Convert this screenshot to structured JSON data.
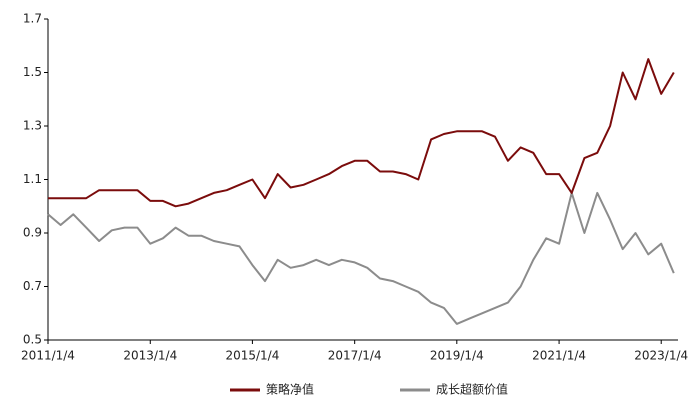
{
  "chart_data": {
    "type": "line",
    "x": [
      "2011/1/4",
      "2011/4/4",
      "2011/7/4",
      "2011/10/4",
      "2012/1/4",
      "2012/4/4",
      "2012/7/4",
      "2012/10/4",
      "2013/1/4",
      "2013/4/4",
      "2013/7/4",
      "2013/10/4",
      "2014/1/4",
      "2014/4/4",
      "2014/7/4",
      "2014/10/4",
      "2015/1/4",
      "2015/4/4",
      "2015/7/4",
      "2015/10/4",
      "2016/1/4",
      "2016/4/4",
      "2016/7/4",
      "2016/10/4",
      "2017/1/4",
      "2017/4/4",
      "2017/7/4",
      "2017/10/4",
      "2018/1/4",
      "2018/4/4",
      "2018/7/4",
      "2018/10/4",
      "2019/1/4",
      "2019/4/4",
      "2019/7/4",
      "2019/10/4",
      "2020/1/4",
      "2020/4/4",
      "2020/7/4",
      "2020/10/4",
      "2021/1/4",
      "2021/4/4",
      "2021/7/4",
      "2021/10/4",
      "2022/1/4",
      "2022/4/4",
      "2022/7/4",
      "2022/10/4",
      "2023/1/4",
      "2023/4/4"
    ],
    "series": [
      {
        "name": "策略净值",
        "color": "#7b0c0c",
        "values": [
          1.03,
          1.03,
          1.03,
          1.03,
          1.06,
          1.06,
          1.06,
          1.06,
          1.02,
          1.02,
          1.0,
          1.01,
          1.03,
          1.05,
          1.06,
          1.08,
          1.1,
          1.03,
          1.12,
          1.07,
          1.08,
          1.1,
          1.12,
          1.15,
          1.17,
          1.17,
          1.13,
          1.13,
          1.12,
          1.1,
          1.25,
          1.27,
          1.28,
          1.28,
          1.28,
          1.26,
          1.17,
          1.22,
          1.2,
          1.12,
          1.12,
          1.05,
          1.18,
          1.2,
          1.3,
          1.5,
          1.4,
          1.55,
          1.42,
          1.5
        ]
      },
      {
        "name": "成长超额价值",
        "color": "#8c8c8c",
        "values": [
          0.97,
          0.93,
          0.97,
          0.92,
          0.87,
          0.91,
          0.92,
          0.92,
          0.86,
          0.88,
          0.92,
          0.89,
          0.89,
          0.87,
          0.86,
          0.85,
          0.78,
          0.72,
          0.8,
          0.77,
          0.78,
          0.8,
          0.78,
          0.8,
          0.79,
          0.77,
          0.73,
          0.72,
          0.7,
          0.68,
          0.64,
          0.62,
          0.56,
          0.58,
          0.6,
          0.62,
          0.64,
          0.7,
          0.8,
          0.88,
          0.86,
          1.05,
          0.9,
          1.05,
          0.95,
          0.84,
          0.9,
          0.82,
          0.86,
          0.75
        ]
      }
    ],
    "xlim": [
      "2011/1/4",
      "2023/5/4"
    ],
    "xticks": [
      "2011/1/4",
      "2013/1/4",
      "2015/1/4",
      "2017/1/4",
      "2019/1/4",
      "2021/1/4",
      "2023/1/4"
    ],
    "ylim": [
      0.5,
      1.7
    ],
    "yticks": [
      0.5,
      0.7,
      0.9,
      1.1,
      1.3,
      1.5,
      1.7
    ],
    "grid": false,
    "legend": "bottom"
  }
}
